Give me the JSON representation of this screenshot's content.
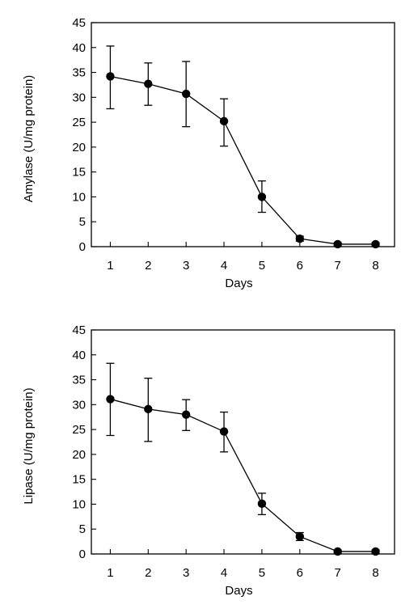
{
  "chart_data": [
    {
      "type": "line",
      "title": "",
      "xlabel": "Days",
      "ylabel": "Amylase (U/mg protein)",
      "ylim": [
        0,
        45
      ],
      "yticks": [
        0,
        5,
        10,
        15,
        20,
        25,
        30,
        35,
        40,
        45
      ],
      "xticks": [
        1,
        2,
        3,
        4,
        5,
        6,
        7,
        8
      ],
      "grid": false,
      "series": [
        {
          "x": [
            1,
            2,
            3,
            4,
            5,
            6,
            7,
            8
          ],
          "y": [
            34.2,
            32.7,
            30.7,
            25.2,
            10.0,
            1.6,
            0.5,
            0.5
          ],
          "error_low": [
            27.7,
            28.4,
            24.1,
            20.2,
            6.9,
            1.1,
            0.2,
            0.2
          ],
          "error_high": [
            40.3,
            36.9,
            37.2,
            29.7,
            13.2,
            2.1,
            0.8,
            0.8
          ]
        }
      ]
    },
    {
      "type": "line",
      "title": "",
      "xlabel": "Days",
      "ylabel": "Lipase (U/mg protein)",
      "ylim": [
        0,
        45
      ],
      "yticks": [
        0,
        5,
        10,
        15,
        20,
        25,
        30,
        35,
        40,
        45
      ],
      "xticks": [
        1,
        2,
        3,
        4,
        5,
        6,
        7,
        8
      ],
      "grid": false,
      "series": [
        {
          "x": [
            1,
            2,
            3,
            4,
            5,
            6,
            7,
            8
          ],
          "y": [
            31.1,
            29.1,
            28.0,
            24.6,
            10.1,
            3.5,
            0.5,
            0.5
          ],
          "error_low": [
            23.8,
            22.6,
            24.8,
            20.5,
            7.9,
            2.7,
            0.2,
            0.2
          ],
          "error_high": [
            38.3,
            35.3,
            31.0,
            28.5,
            12.2,
            4.3,
            0.8,
            0.8
          ]
        }
      ]
    }
  ]
}
